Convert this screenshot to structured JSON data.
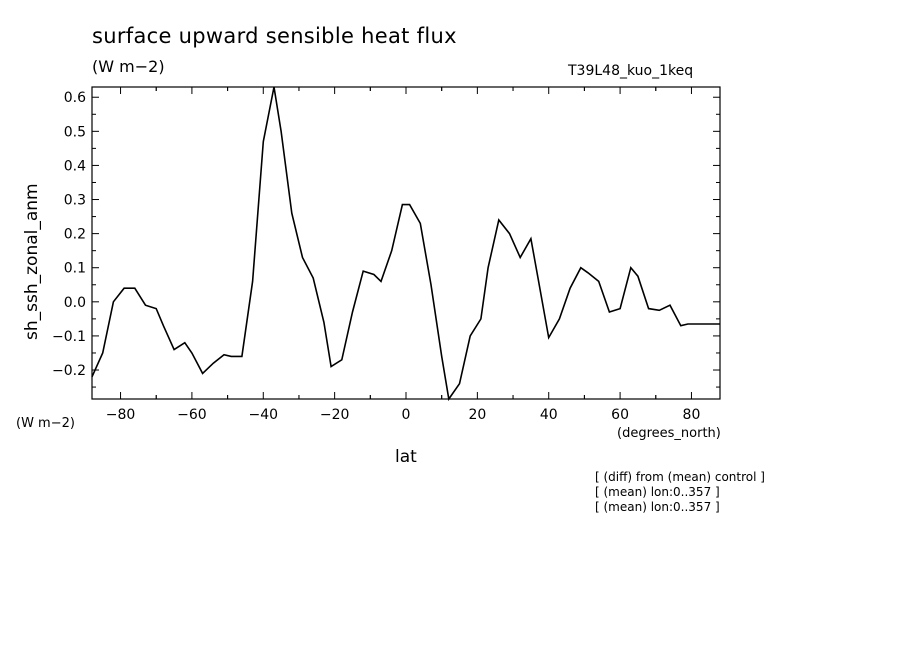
{
  "header": {
    "title": "surface upward sensible heat flux",
    "subtitle": "(W m−2)",
    "run_label": "T39L48_kuo_1keq"
  },
  "axes": {
    "y_unit": "(W m−2)",
    "x_unit": "(degrees_north)"
  },
  "notes": [
    "[ (diff) from (mean) control ]",
    "[ (mean) lon:0..357 ]",
    "[ (mean) lon:0..357 ]"
  ],
  "chart_data": {
    "type": "line",
    "title": "surface upward sensible heat flux",
    "xlabel": "lat",
    "ylabel": "sh_ssh_zonal_anm",
    "xlim": [
      -88,
      88
    ],
    "ylim": [
      -0.285,
      0.63
    ],
    "x_ticks": [
      -80,
      -60,
      -40,
      -20,
      0,
      20,
      40,
      60,
      80
    ],
    "x_tick_labels": [
      "−80",
      "−60",
      "−40",
      "−20",
      "0",
      "20",
      "40",
      "60",
      "80"
    ],
    "y_ticks": [
      -0.2,
      -0.1,
      0.0,
      0.1,
      0.2,
      0.3,
      0.4,
      0.5,
      0.6
    ],
    "y_tick_labels": [
      "−0.2",
      "−0.1",
      "0.0",
      "0.1",
      "0.2",
      "0.3",
      "0.4",
      "0.5",
      "0.6"
    ],
    "grid": false,
    "line_color": "#000000",
    "series": [
      {
        "x": [
          -88,
          -85,
          -82,
          -79,
          -76,
          -73,
          -70,
          -68,
          -65,
          -62,
          -60,
          -57,
          -54,
          -51,
          -49,
          -46,
          -43,
          -40,
          -37,
          -35,
          -32,
          -29,
          -26,
          -23,
          -21,
          -18,
          -15,
          -12,
          -9,
          -7,
          -4,
          -1,
          1,
          4,
          7,
          10,
          12,
          15,
          18,
          21,
          23,
          26,
          29,
          32,
          35,
          37,
          40,
          43,
          46,
          49,
          51,
          54,
          57,
          60,
          63,
          65,
          68,
          71,
          74,
          77,
          79,
          82,
          85,
          88
        ],
        "values": [
          -0.22,
          -0.15,
          0.0,
          0.04,
          0.04,
          -0.01,
          -0.02,
          -0.07,
          -0.14,
          -0.12,
          -0.15,
          -0.21,
          -0.18,
          -0.155,
          -0.16,
          -0.16,
          0.06,
          0.47,
          0.63,
          0.5,
          0.26,
          0.13,
          0.07,
          -0.06,
          -0.19,
          -0.17,
          -0.03,
          0.09,
          0.08,
          0.06,
          0.15,
          0.285,
          0.285,
          0.23,
          0.05,
          -0.16,
          -0.29,
          -0.24,
          -0.1,
          -0.05,
          0.1,
          0.24,
          0.2,
          0.13,
          0.185,
          0.07,
          -0.105,
          -0.05,
          0.04,
          0.1,
          0.085,
          0.06,
          -0.03,
          -0.02,
          0.1,
          0.075,
          -0.02,
          -0.025,
          -0.01,
          -0.07,
          -0.065,
          -0.065,
          -0.065,
          -0.065
        ]
      }
    ]
  }
}
